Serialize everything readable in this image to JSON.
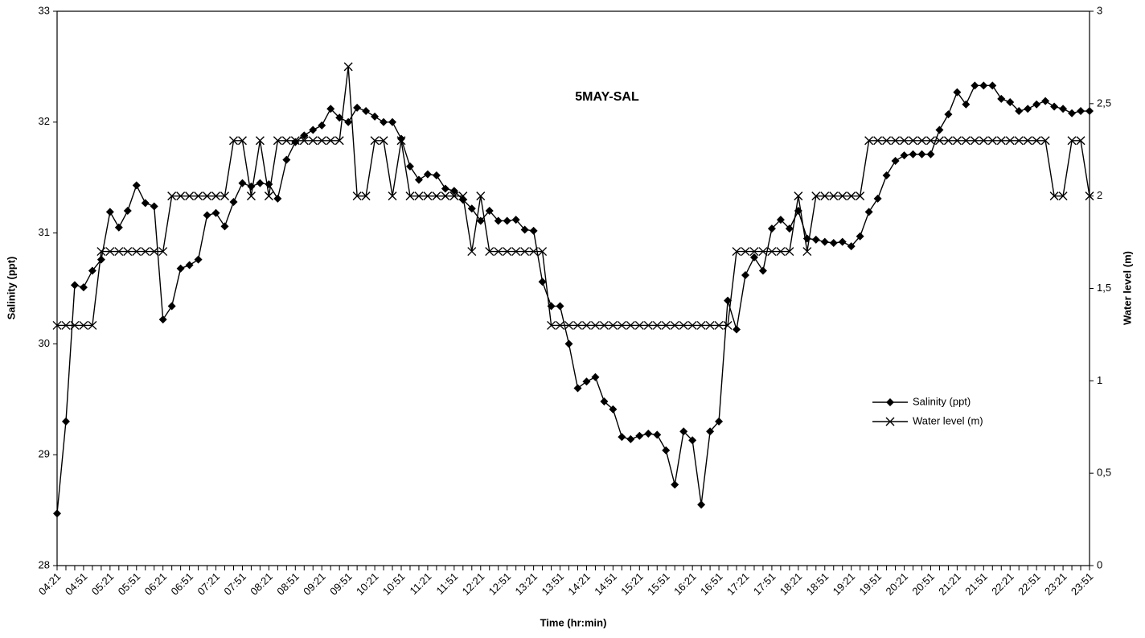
{
  "chart_data": {
    "type": "line",
    "title": "5MAY-SAL",
    "x_label": "Time (hr:min)",
    "y_label": "Salinity (ppt)",
    "y2_label": "Water level (m)",
    "categories": [
      "04:21",
      null,
      null,
      "04:51",
      null,
      null,
      "05:21",
      null,
      null,
      "05:51",
      null,
      null,
      "06:21",
      null,
      null,
      "06:51",
      null,
      null,
      "07:21",
      null,
      null,
      "07:51",
      null,
      null,
      "08:21",
      null,
      null,
      "08:51",
      null,
      null,
      "09:21",
      null,
      null,
      "09:51",
      null,
      null,
      "10:21",
      null,
      null,
      "10:51",
      null,
      null,
      "11:21",
      null,
      null,
      "11:51",
      null,
      null,
      "12:21",
      null,
      null,
      "12:51",
      null,
      null,
      "13:21",
      null,
      null,
      "13:51",
      null,
      null,
      "14:21",
      null,
      null,
      "14:51",
      null,
      null,
      "15:21",
      null,
      null,
      "15:51",
      null,
      null,
      "16:21",
      null,
      null,
      "16:51",
      null,
      null,
      "17:21",
      null,
      null,
      "17:51",
      null,
      null,
      "18:21",
      null,
      null,
      "18:51",
      null,
      null,
      "19:21",
      null,
      null,
      "19:51",
      null,
      null,
      "20:21",
      null,
      null,
      "20:51",
      null,
      null,
      "21:21",
      null,
      null,
      "21:51",
      null,
      null,
      "22:21",
      null,
      null,
      "22:51",
      null,
      null,
      "23:21",
      null,
      null,
      "23:51"
    ],
    "series": [
      {
        "name": "Salinity (ppt)",
        "color": "#000000",
        "marker": "diamond",
        "values": [
          28.47,
          29.3,
          30.53,
          30.51,
          30.66,
          30.76,
          31.19,
          31.05,
          31.2,
          31.43,
          31.27,
          31.24,
          30.22,
          30.34,
          30.68,
          30.71,
          30.76,
          31.16,
          31.18,
          31.06,
          31.28,
          31.45,
          31.42,
          31.45,
          31.44,
          31.31,
          31.66,
          31.82,
          31.88,
          31.93,
          31.97,
          32.12,
          32.04,
          32.0,
          32.13,
          32.1,
          32.05,
          32.0,
          32.0,
          31.85,
          31.6,
          31.48,
          31.53,
          31.52,
          31.4,
          31.38,
          31.3,
          31.22,
          31.11,
          31.2,
          31.11,
          31.11,
          31.12,
          31.03,
          31.02,
          30.56,
          30.34,
          30.34,
          30.0,
          29.6,
          29.66,
          29.7,
          29.48,
          29.41,
          29.16,
          29.14,
          29.17,
          29.19,
          29.18,
          29.04,
          28.73,
          29.21,
          29.13,
          28.55,
          29.21,
          29.3,
          30.39,
          30.13,
          30.62,
          30.78,
          30.66,
          31.04,
          31.12,
          31.04,
          31.2,
          30.95,
          30.94,
          30.92,
          30.91,
          30.92,
          30.88,
          30.97,
          31.19,
          31.31,
          31.52,
          31.65,
          31.7,
          31.71,
          31.71,
          31.71,
          31.93,
          32.07,
          32.27,
          32.16,
          32.33,
          32.33,
          32.33,
          32.21,
          32.18,
          32.1,
          32.12,
          32.16,
          32.19,
          32.14,
          32.12,
          32.08,
          32.1,
          32.1
        ]
      },
      {
        "name": "Water level (m)",
        "color": "#000000",
        "marker": "x",
        "axis": "y2",
        "values": [
          1.3,
          1.3,
          1.3,
          1.3,
          1.3,
          1.7,
          1.7,
          1.7,
          1.7,
          1.7,
          1.7,
          1.7,
          1.7,
          2,
          2,
          2,
          2,
          2,
          2,
          2,
          2.3,
          2.3,
          2,
          2.3,
          2,
          2.3,
          2.3,
          2.3,
          2.3,
          2.3,
          2.3,
          2.3,
          2.3,
          2.7,
          2,
          2,
          2.3,
          2.3,
          2,
          2.3,
          2,
          2,
          2,
          2,
          2,
          2,
          2,
          1.7,
          2,
          1.7,
          1.7,
          1.7,
          1.7,
          1.7,
          1.7,
          1.7,
          1.3,
          1.3,
          1.3,
          1.3,
          1.3,
          1.3,
          1.3,
          1.3,
          1.3,
          1.3,
          1.3,
          1.3,
          1.3,
          1.3,
          1.3,
          1.3,
          1.3,
          1.3,
          1.3,
          1.3,
          1.3,
          1.7,
          1.7,
          1.7,
          1.7,
          1.7,
          1.7,
          1.7,
          2,
          1.7,
          2,
          2,
          2,
          2,
          2,
          2,
          2.3,
          2.3,
          2.3,
          2.3,
          2.3,
          2.3,
          2.3,
          2.3,
          2.3,
          2.3,
          2.3,
          2.3,
          2.3,
          2.3,
          2.3,
          2.3,
          2.3,
          2.3,
          2.3,
          2.3,
          2.3,
          2,
          2,
          2.3,
          2.3,
          2
        ]
      }
    ],
    "ylim": [
      28,
      33
    ],
    "yticks": [
      28,
      29,
      30,
      31,
      32,
      33
    ],
    "y2lim": [
      0,
      3
    ],
    "y2ticks": [
      0,
      {
        "value": 0.5,
        "label": "0,5"
      },
      1,
      {
        "value": 1.5,
        "label": "1,5"
      },
      2,
      {
        "value": 2.5,
        "label": "2,5"
      },
      3
    ],
    "grid": false,
    "legend": "right"
  }
}
